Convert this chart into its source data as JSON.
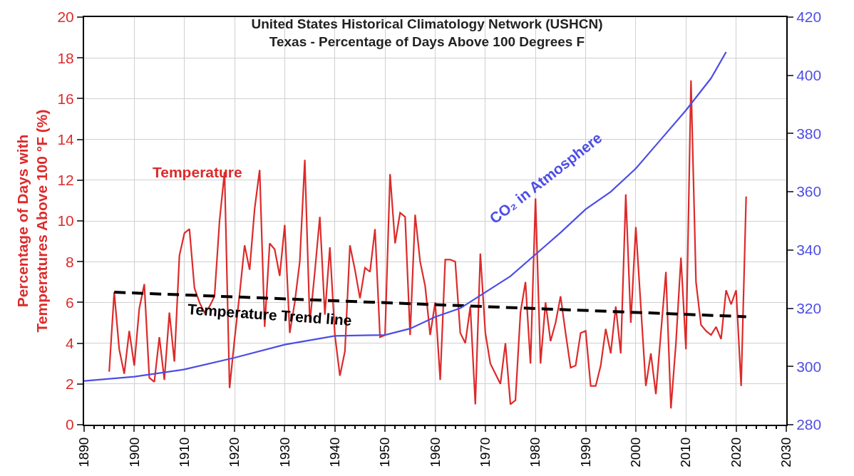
{
  "chart_data": {
    "type": "line",
    "title": "United States Historical Climatology Network (USHCN)\nTexas - Percentage of Days Above 100 Degrees F",
    "ylabel": "Percentage of Days with\nTemperatures Above 100 °F (%)",
    "xlim": [
      1890,
      2030
    ],
    "xticks": [
      1890,
      1900,
      1910,
      1920,
      1930,
      1940,
      1950,
      1960,
      1970,
      1980,
      1990,
      2000,
      2010,
      2020,
      2030
    ],
    "ylim": [
      0,
      20
    ],
    "yticks": [
      0,
      2,
      4,
      6,
      8,
      10,
      12,
      14,
      16,
      18,
      20
    ],
    "y2lim": [
      280,
      420
    ],
    "y2ticks": [
      280,
      300,
      320,
      340,
      360,
      380,
      400,
      420
    ],
    "grid": true,
    "marker": "none",
    "series": [
      {
        "color": "#dd2a2a",
        "line_style": "solid",
        "x": [
          1895,
          1896,
          1897,
          1898,
          1899,
          1900,
          1901,
          1902,
          1903,
          1904,
          1905,
          1906,
          1907,
          1908,
          1909,
          1910,
          1911,
          1912,
          1913,
          1914,
          1915,
          1916,
          1917,
          1918,
          1919,
          1920,
          1921,
          1922,
          1923,
          1924,
          1925,
          1926,
          1927,
          1928,
          1929,
          1930,
          1931,
          1932,
          1933,
          1934,
          1935,
          1936,
          1937,
          1938,
          1939,
          1940,
          1941,
          1942,
          1943,
          1944,
          1945,
          1946,
          1947,
          1948,
          1949,
          1950,
          1951,
          1952,
          1953,
          1954,
          1955,
          1956,
          1957,
          1958,
          1959,
          1960,
          1961,
          1962,
          1963,
          1964,
          1965,
          1966,
          1967,
          1968,
          1969,
          1970,
          1971,
          1972,
          1973,
          1974,
          1975,
          1976,
          1977,
          1978,
          1979,
          1980,
          1981,
          1982,
          1983,
          1984,
          1985,
          1986,
          1987,
          1988,
          1989,
          1990,
          1991,
          1992,
          1993,
          1994,
          1995,
          1996,
          1997,
          1998,
          1999,
          2000,
          2001,
          2002,
          2003,
          2004,
          2005,
          2006,
          2007,
          2008,
          2009,
          2010,
          2011,
          2012,
          2013,
          2014,
          2015,
          2016,
          2017,
          2018,
          2019,
          2020,
          2021,
          2022
        ],
        "values": [
          2.6,
          6.5,
          3.7,
          2.5,
          4.6,
          2.9,
          5.7,
          6.9,
          2.3,
          2.1,
          4.3,
          2.2,
          5.5,
          3.1,
          8.3,
          9.4,
          9.6,
          6.7,
          6.0,
          5.5,
          5.8,
          6.3,
          10.0,
          12.4,
          1.8,
          4.2,
          6.4,
          8.8,
          7.6,
          10.6,
          12.5,
          4.8,
          8.9,
          8.6,
          7.3,
          9.8,
          4.5,
          6.0,
          8.0,
          13.0,
          5.0,
          7.5,
          10.2,
          5.4,
          8.7,
          4.4,
          2.4,
          3.6,
          8.8,
          7.6,
          6.2,
          7.7,
          7.5,
          9.6,
          4.3,
          4.4,
          12.3,
          8.9,
          10.4,
          10.2,
          4.4,
          10.3,
          8.0,
          6.8,
          4.4,
          6.0,
          2.2,
          8.1,
          8.1,
          8.0,
          4.5,
          4.0,
          5.8,
          1.0,
          8.4,
          4.5,
          3.0,
          2.5,
          2.0,
          4.0,
          1.0,
          1.2,
          5.5,
          7.0,
          3.0,
          11.1,
          3.0,
          6.0,
          4.1,
          5.0,
          6.3,
          4.5,
          2.8,
          2.9,
          4.5,
          4.6,
          1.9,
          1.9,
          2.9,
          4.7,
          3.5,
          5.8,
          3.5,
          11.3,
          5.0,
          9.7,
          5.8,
          1.9,
          3.5,
          1.5,
          4.5,
          7.5,
          0.8,
          4.0,
          8.2,
          3.7,
          16.9,
          7.0,
          4.9,
          4.6,
          4.4,
          4.8,
          4.2,
          6.6,
          5.9,
          6.6,
          1.9,
          11.2
        ]
      },
      {
        "color": "#000000",
        "line_style": "dashed",
        "x": [
          1896,
          2022
        ],
        "values": [
          6.5,
          5.3
        ]
      },
      {
        "color": "#4d4de6",
        "line_style": "solid",
        "axis": "y2",
        "x": [
          1890,
          1900,
          1910,
          1920,
          1930,
          1940,
          1950,
          1955,
          1960,
          1965,
          1970,
          1975,
          1980,
          1985,
          1990,
          1995,
          2000,
          2005,
          2010,
          2015,
          2018
        ],
        "values": [
          295,
          296.5,
          299,
          303,
          307.5,
          310.5,
          310.8,
          313,
          317,
          320,
          325.5,
          331,
          338.5,
          346,
          354,
          360,
          368,
          378,
          388,
          399,
          408
        ]
      }
    ],
    "annotations": [
      "Temperature",
      {
        "text": "Temperature Trend line",
        "x": 1927,
        "y": 5.4
      },
      "CO₂ in Atmosphere"
    ]
  }
}
